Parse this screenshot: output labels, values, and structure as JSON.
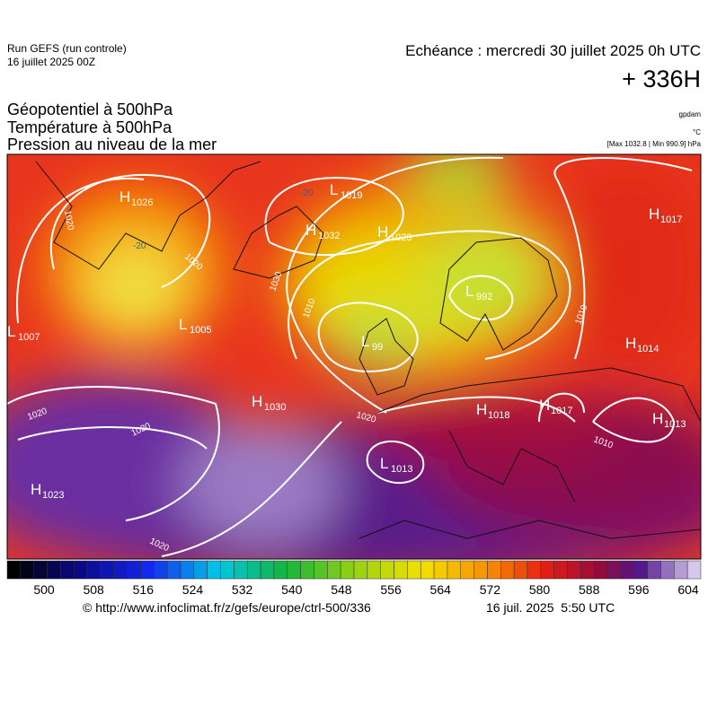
{
  "header": {
    "run": "Run GEFS (run controle)",
    "run_date": "16 juillet 2025 00Z",
    "forecast": "Echéance : mercredi 30 juillet 2025 0h UTC",
    "lead": "+ 336H"
  },
  "titles": [
    "Géopotentiel à 500hPa",
    "Température à 500hPa",
    "Pression au niveau de la mer"
  ],
  "units": [
    "gpdam",
    "°C",
    "[Max 1032.8 | Min 990.9] hPa"
  ],
  "centers": [
    {
      "type": "H",
      "value": "1026"
    },
    {
      "type": "L",
      "value": "1019"
    },
    {
      "type": "H",
      "value": "1032"
    },
    {
      "type": "H",
      "value": "1023"
    },
    {
      "type": "L",
      "value": "1007"
    },
    {
      "type": "L",
      "value": "1005"
    },
    {
      "type": "L",
      "value": "99"
    },
    {
      "type": "L",
      "value": "992"
    },
    {
      "type": "H",
      "value": "1030"
    },
    {
      "type": "H",
      "value": "1018"
    },
    {
      "type": "H",
      "value": "1017"
    },
    {
      "type": "H",
      "value": "1013"
    },
    {
      "type": "L",
      "value": "1013"
    },
    {
      "type": "H",
      "value": "1014"
    },
    {
      "type": "H",
      "value": "1017"
    },
    {
      "type": "H",
      "value": "1023"
    }
  ],
  "isobar_labels": [
    "1020",
    "1020",
    "1030",
    "1010",
    "1020",
    "1020",
    "1020",
    "1020",
    "1010",
    "1010"
  ],
  "temperature_labels": [
    "-20",
    "-20"
  ],
  "colorbar": {
    "ticks": [
      500,
      508,
      516,
      524,
      532,
      540,
      548,
      556,
      564,
      572,
      580,
      588,
      596,
      604
    ]
  },
  "footer": {
    "source": "© http://www.infoclimat.fr/z/gefs/europe/ctrl-500/336",
    "generated": "16 juil. 2025  5:50 UTC"
  }
}
